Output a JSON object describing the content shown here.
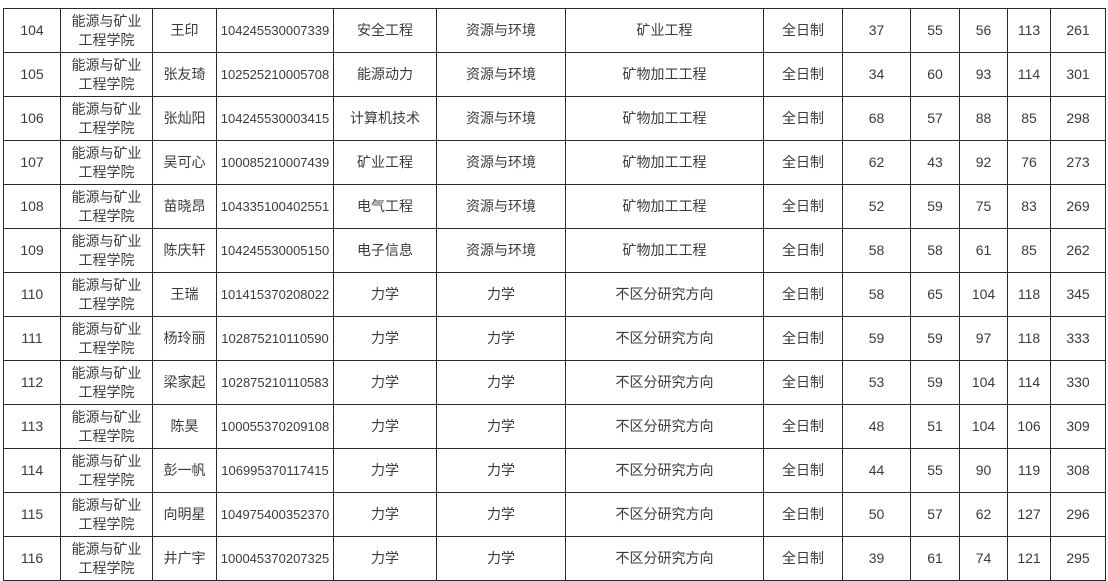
{
  "table": {
    "rows": [
      {
        "cells": [
          "104",
          "能源与矿业工程学院",
          "王印",
          "104245530007339",
          "安全工程",
          "资源与环境",
          "矿业工程",
          "全日制",
          "37",
          "55",
          "56",
          "113",
          "261"
        ]
      },
      {
        "cells": [
          "105",
          "能源与矿业工程学院",
          "张友琦",
          "102525210005708",
          "能源动力",
          "资源与环境",
          "矿物加工工程",
          "全日制",
          "34",
          "60",
          "93",
          "114",
          "301"
        ]
      },
      {
        "cells": [
          "106",
          "能源与矿业工程学院",
          "张灿阳",
          "104245530003415",
          "计算机技术",
          "资源与环境",
          "矿物加工工程",
          "全日制",
          "68",
          "57",
          "88",
          "85",
          "298"
        ]
      },
      {
        "cells": [
          "107",
          "能源与矿业工程学院",
          "吴可心",
          "100085210007439",
          "矿业工程",
          "资源与环境",
          "矿物加工工程",
          "全日制",
          "62",
          "43",
          "92",
          "76",
          "273"
        ]
      },
      {
        "cells": [
          "108",
          "能源与矿业工程学院",
          "苗晓昂",
          "104335100402551",
          "电气工程",
          "资源与环境",
          "矿物加工工程",
          "全日制",
          "52",
          "59",
          "75",
          "83",
          "269"
        ]
      },
      {
        "cells": [
          "109",
          "能源与矿业工程学院",
          "陈庆轩",
          "104245530005150",
          "电子信息",
          "资源与环境",
          "矿物加工工程",
          "全日制",
          "58",
          "58",
          "61",
          "85",
          "262"
        ]
      },
      {
        "cells": [
          "110",
          "能源与矿业工程学院",
          "王瑞",
          "101415370208022",
          "力学",
          "力学",
          "不区分研究方向",
          "全日制",
          "58",
          "65",
          "104",
          "118",
          "345"
        ]
      },
      {
        "cells": [
          "111",
          "能源与矿业工程学院",
          "杨玲丽",
          "102875210110590",
          "力学",
          "力学",
          "不区分研究方向",
          "全日制",
          "59",
          "59",
          "97",
          "118",
          "333"
        ]
      },
      {
        "cells": [
          "112",
          "能源与矿业工程学院",
          "梁家起",
          "102875210110583",
          "力学",
          "力学",
          "不区分研究方向",
          "全日制",
          "53",
          "59",
          "104",
          "114",
          "330"
        ]
      },
      {
        "cells": [
          "113",
          "能源与矿业工程学院",
          "陈昊",
          "100055370209108",
          "力学",
          "力学",
          "不区分研究方向",
          "全日制",
          "48",
          "51",
          "104",
          "106",
          "309"
        ]
      },
      {
        "cells": [
          "114",
          "能源与矿业工程学院",
          "彭一帆",
          "106995370117415",
          "力学",
          "力学",
          "不区分研究方向",
          "全日制",
          "44",
          "55",
          "90",
          "119",
          "308"
        ]
      },
      {
        "cells": [
          "115",
          "能源与矿业工程学院",
          "向明星",
          "104975400352370",
          "力学",
          "力学",
          "不区分研究方向",
          "全日制",
          "50",
          "57",
          "62",
          "127",
          "296"
        ]
      },
      {
        "cells": [
          "116",
          "能源与矿业工程学院",
          "井广宇",
          "100045370207325",
          "力学",
          "力学",
          "不区分研究方向",
          "全日制",
          "39",
          "61",
          "74",
          "121",
          "295"
        ]
      }
    ]
  }
}
